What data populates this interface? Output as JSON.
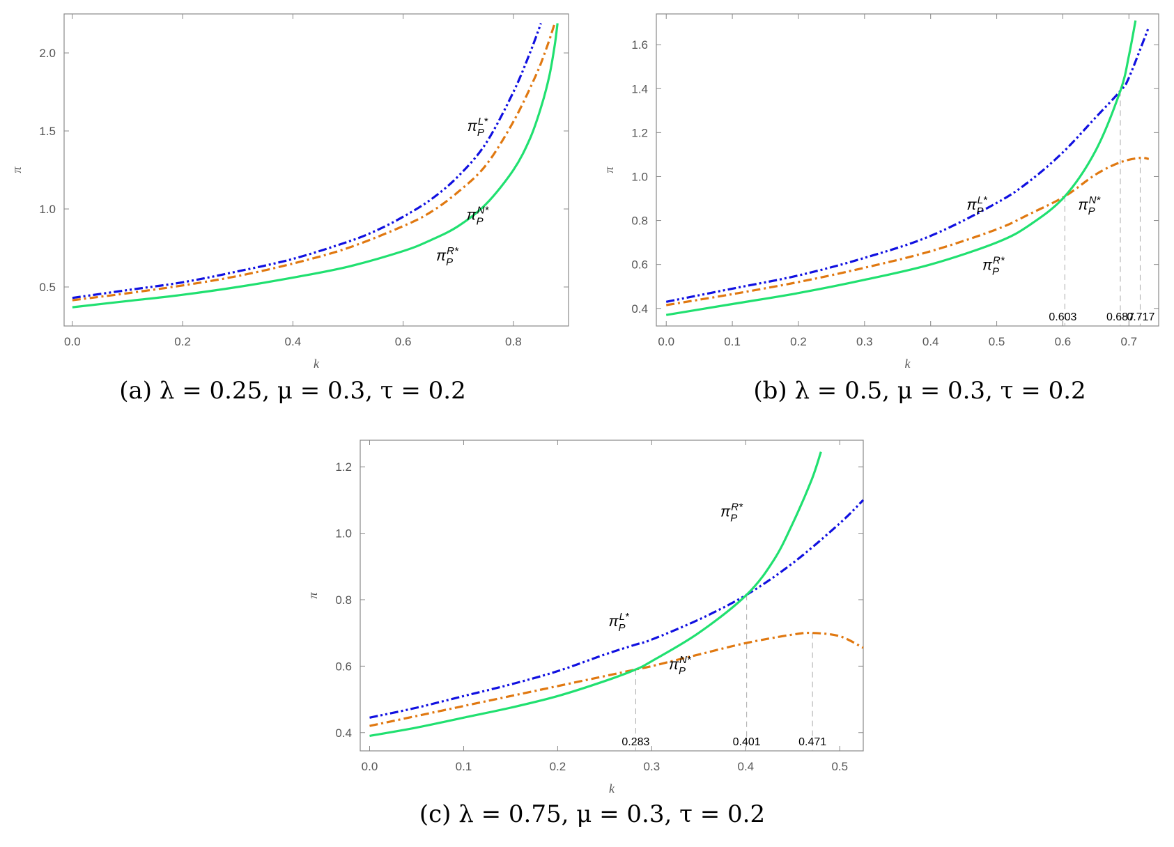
{
  "chart_data": [
    {
      "type": "line",
      "panel": "a",
      "caption": "(a) λ = 0.25, μ = 0.3, τ = 0.2",
      "xlabel": "k",
      "ylabel": "π",
      "xlim": [
        -0.015,
        0.9
      ],
      "ylim": [
        0.25,
        2.25
      ],
      "xticks": [
        "0.0",
        "0.2",
        "0.4",
        "0.6",
        "0.8"
      ],
      "yticks": [
        "0.5",
        "1.0",
        "1.5",
        "2.0"
      ],
      "series": [
        {
          "name": "π_P^L*",
          "color": "#1010e0",
          "style": "dashdotdot",
          "x": [
            0,
            0.1,
            0.2,
            0.3,
            0.4,
            0.5,
            0.55,
            0.6,
            0.65,
            0.7,
            0.75,
            0.8,
            0.83,
            0.85
          ],
          "y": [
            0.43,
            0.48,
            0.53,
            0.6,
            0.68,
            0.79,
            0.86,
            0.95,
            1.06,
            1.21,
            1.42,
            1.75,
            2.0,
            2.19
          ]
        },
        {
          "name": "π_P^N*",
          "color": "#e07810",
          "style": "dashdot",
          "x": [
            0,
            0.1,
            0.2,
            0.3,
            0.4,
            0.5,
            0.6,
            0.65,
            0.7,
            0.75,
            0.8,
            0.84,
            0.86,
            0.875
          ],
          "y": [
            0.415,
            0.46,
            0.51,
            0.57,
            0.65,
            0.75,
            0.89,
            0.98,
            1.11,
            1.28,
            1.56,
            1.85,
            2.03,
            2.19
          ]
        },
        {
          "name": "π_P^R*",
          "color": "#20e070",
          "style": "solid",
          "x": [
            0,
            0.1,
            0.2,
            0.3,
            0.4,
            0.5,
            0.6,
            0.65,
            0.7,
            0.75,
            0.8,
            0.83,
            0.85,
            0.865,
            0.875,
            0.88
          ],
          "y": [
            0.37,
            0.41,
            0.45,
            0.5,
            0.56,
            0.63,
            0.73,
            0.8,
            0.89,
            1.03,
            1.25,
            1.45,
            1.65,
            1.85,
            2.05,
            2.19
          ]
        }
      ],
      "curve_labels": [
        {
          "series": "L",
          "x": 0.735,
          "y": 1.5
        },
        {
          "series": "N",
          "x": 0.735,
          "y": 0.93
        },
        {
          "series": "R",
          "x": 0.68,
          "y": 0.67
        }
      ],
      "markers": []
    },
    {
      "type": "line",
      "panel": "b",
      "caption": "(b) λ = 0.5, μ = 0.3, τ = 0.2",
      "xlabel": "k",
      "ylabel": "π",
      "xlim": [
        -0.015,
        0.745
      ],
      "ylim": [
        0.32,
        1.74
      ],
      "xticks": [
        "0.0",
        "0.1",
        "0.2",
        "0.3",
        "0.4",
        "0.5",
        "0.6",
        "0.7"
      ],
      "yticks": [
        "0.4",
        "0.6",
        "0.8",
        "1.0",
        "1.2",
        "1.4",
        "1.6"
      ],
      "series": [
        {
          "name": "π_P^L*",
          "color": "#1010e0",
          "style": "dashdotdot",
          "x": [
            0,
            0.1,
            0.2,
            0.3,
            0.4,
            0.5,
            0.55,
            0.6,
            0.65,
            0.687,
            0.7,
            0.73
          ],
          "y": [
            0.43,
            0.49,
            0.55,
            0.63,
            0.73,
            0.88,
            0.98,
            1.11,
            1.27,
            1.39,
            1.45,
            1.68
          ]
        },
        {
          "name": "π_P^N*",
          "color": "#e07810",
          "style": "dashdot",
          "x": [
            0,
            0.1,
            0.2,
            0.3,
            0.4,
            0.5,
            0.55,
            0.603,
            0.65,
            0.687,
            0.717,
            0.73
          ],
          "y": [
            0.415,
            0.465,
            0.52,
            0.585,
            0.66,
            0.76,
            0.83,
            0.91,
            1.01,
            1.065,
            1.085,
            1.08
          ]
        },
        {
          "name": "π_P^R*",
          "color": "#20e070",
          "style": "solid",
          "x": [
            0,
            0.1,
            0.2,
            0.3,
            0.4,
            0.5,
            0.55,
            0.603,
            0.65,
            0.687,
            0.7,
            0.71
          ],
          "y": [
            0.37,
            0.42,
            0.47,
            0.53,
            0.6,
            0.7,
            0.78,
            0.91,
            1.12,
            1.39,
            1.55,
            1.71
          ]
        }
      ],
      "curve_labels": [
        {
          "series": "L",
          "x": 0.47,
          "y": 0.85
        },
        {
          "series": "N",
          "x": 0.64,
          "y": 0.85
        },
        {
          "series": "R",
          "x": 0.495,
          "y": 0.575
        }
      ],
      "markers": [
        {
          "label": "0.603",
          "x": 0.603,
          "y": 0.91,
          "label_x": 0.6
        },
        {
          "label": "0.687",
          "x": 0.687,
          "y": 1.39,
          "label_x": 0.687
        },
        {
          "label": "0.717",
          "x": 0.717,
          "y": 1.085,
          "label_x": 0.718
        }
      ]
    },
    {
      "type": "line",
      "panel": "c",
      "caption": "(c) λ = 0.75, μ = 0.3, τ = 0.2",
      "xlabel": "k",
      "ylabel": "π",
      "xlim": [
        -0.01,
        0.525
      ],
      "ylim": [
        0.345,
        1.28
      ],
      "xticks": [
        "0.0",
        "0.1",
        "0.2",
        "0.3",
        "0.4",
        "0.5"
      ],
      "yticks": [
        "0.4",
        "0.6",
        "0.8",
        "1.0",
        "1.2"
      ],
      "series": [
        {
          "name": "π_P^L*",
          "color": "#1010e0",
          "style": "dashdotdot",
          "x": [
            0,
            0.05,
            0.1,
            0.15,
            0.2,
            0.25,
            0.283,
            0.3,
            0.35,
            0.401,
            0.45,
            0.5,
            0.525
          ],
          "y": [
            0.445,
            0.475,
            0.51,
            0.545,
            0.585,
            0.635,
            0.665,
            0.68,
            0.74,
            0.815,
            0.91,
            1.03,
            1.1
          ]
        },
        {
          "name": "π_P^N*",
          "color": "#e07810",
          "style": "dashdot",
          "x": [
            0,
            0.05,
            0.1,
            0.15,
            0.2,
            0.25,
            0.283,
            0.3,
            0.35,
            0.401,
            0.45,
            0.471,
            0.5,
            0.525
          ],
          "y": [
            0.42,
            0.45,
            0.48,
            0.51,
            0.54,
            0.57,
            0.59,
            0.6,
            0.635,
            0.67,
            0.695,
            0.7,
            0.69,
            0.655
          ]
        },
        {
          "name": "π_P^R*",
          "color": "#20e070",
          "style": "solid",
          "x": [
            0,
            0.05,
            0.1,
            0.15,
            0.2,
            0.25,
            0.283,
            0.3,
            0.35,
            0.401,
            0.43,
            0.45,
            0.47,
            0.48
          ],
          "y": [
            0.39,
            0.415,
            0.445,
            0.475,
            0.51,
            0.555,
            0.59,
            0.615,
            0.7,
            0.815,
            0.92,
            1.03,
            1.16,
            1.245
          ]
        }
      ],
      "curve_labels": [
        {
          "series": "L",
          "x": 0.265,
          "y": 0.72
        },
        {
          "series": "N",
          "x": 0.33,
          "y": 0.59
        },
        {
          "series": "R",
          "x": 0.385,
          "y": 1.05
        }
      ],
      "markers": [
        {
          "label": "0.283",
          "x": 0.283,
          "y": 0.59,
          "label_x": 0.283
        },
        {
          "label": "0.401",
          "x": 0.401,
          "y": 0.815,
          "label_x": 0.401
        },
        {
          "label": "0.471",
          "x": 0.471,
          "y": 0.7,
          "label_x": 0.471
        }
      ]
    }
  ]
}
